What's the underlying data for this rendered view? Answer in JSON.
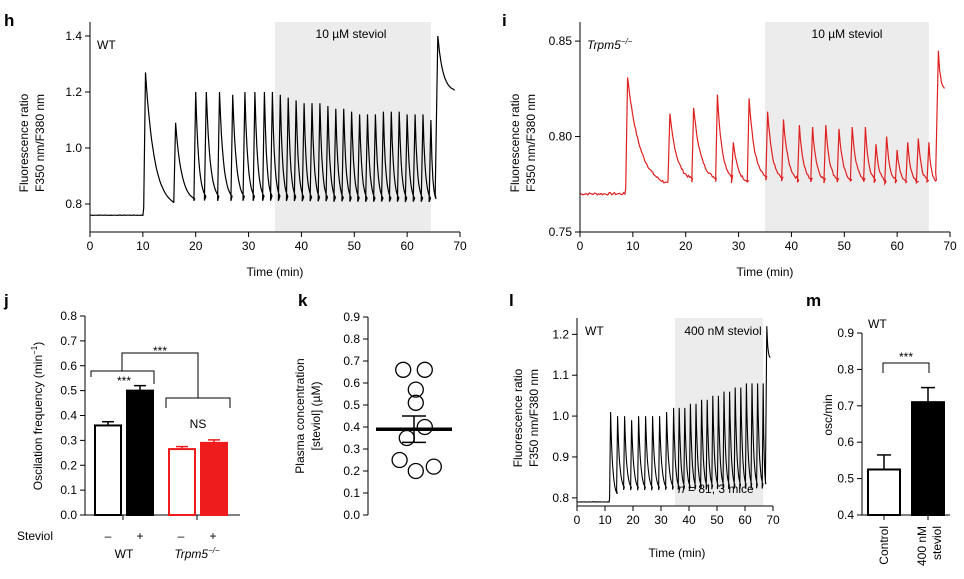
{
  "panels": {
    "h": {
      "letter": "h",
      "genotype": "WT",
      "shade_label": "10 µM steviol",
      "xlabel": "Time (min)",
      "ylabel_1": "Fluorescence ratio",
      "ylabel_2": "F350 nm/F380 nm"
    },
    "i": {
      "letter": "i",
      "genotype": "Trpm5",
      "genotype_sup": "−/−",
      "shade_label": "10 µM steviol",
      "xlabel": "Time (min)",
      "ylabel_1": "Fluorescence ratio",
      "ylabel_2": "F350 nm/F380 nm"
    },
    "j": {
      "letter": "j",
      "ylabel": "Oscilation frequency (min",
      "ylabel_sup": "−1",
      "ylabel_end": ")",
      "sig_top": "***",
      "sig_wt": "***",
      "sig_ko": "NS",
      "steviol_label": "Steviol",
      "minus": "–",
      "plus": "+",
      "group_wt": "WT",
      "group_ko": "Trpm5",
      "group_ko_sup": "−/−"
    },
    "k": {
      "letter": "k",
      "ylabel_1": "Plasma concentration",
      "ylabel_2": "[steviol] (µM)"
    },
    "l": {
      "letter": "l",
      "genotype": "WT",
      "shade_label": "400 nM steviol",
      "xlabel": "Time (min)",
      "ylabel_1": "Fluorescence ratio",
      "ylabel_2": "F350 nm/F380 nm",
      "n_label_n": "n",
      "n_label_rest": " = 81, 3 mice"
    },
    "m": {
      "letter": "m",
      "genotype": "WT",
      "ylabel": "osc/min",
      "sig": "***"
    }
  },
  "chart_data": [
    {
      "id": "h",
      "type": "line",
      "xlabel": "Time (min)",
      "ylabel": "Fluorescence ratio F350 nm/F380 nm",
      "xlim": [
        0,
        70
      ],
      "ylim": [
        0.7,
        1.45
      ],
      "xticks": [
        0,
        10,
        20,
        30,
        40,
        50,
        60,
        70
      ],
      "yticks": [
        0.8,
        1.0,
        1.2,
        1.4
      ],
      "shaded_region": [
        35,
        64.5
      ],
      "baseline": 0.76,
      "color": "#000000",
      "peaks": [
        {
          "t": 10.5,
          "y": 1.27
        },
        {
          "t": 16.2,
          "y": 1.09
        },
        {
          "t": 20,
          "y": 1.2
        },
        {
          "t": 22,
          "y": 1.2
        },
        {
          "t": 24.5,
          "y": 1.2
        },
        {
          "t": 27,
          "y": 1.19
        },
        {
          "t": 29.3,
          "y": 1.2
        },
        {
          "t": 31.2,
          "y": 1.2
        },
        {
          "t": 33,
          "y": 1.2
        },
        {
          "t": 34.5,
          "y": 1.2
        },
        {
          "t": 36,
          "y": 1.19
        },
        {
          "t": 37.5,
          "y": 1.18
        },
        {
          "t": 39,
          "y": 1.17
        },
        {
          "t": 40.5,
          "y": 1.16
        },
        {
          "t": 42,
          "y": 1.16
        },
        {
          "t": 43.5,
          "y": 1.16
        },
        {
          "t": 45,
          "y": 1.15
        },
        {
          "t": 46.5,
          "y": 1.14
        },
        {
          "t": 48,
          "y": 1.14
        },
        {
          "t": 49.5,
          "y": 1.13
        },
        {
          "t": 51,
          "y": 1.12
        },
        {
          "t": 52.5,
          "y": 1.12
        },
        {
          "t": 54,
          "y": 1.12
        },
        {
          "t": 55.5,
          "y": 1.13
        },
        {
          "t": 57,
          "y": 1.13
        },
        {
          "t": 58.5,
          "y": 1.13
        },
        {
          "t": 60,
          "y": 1.12
        },
        {
          "t": 61.5,
          "y": 1.12
        },
        {
          "t": 63,
          "y": 1.12
        },
        {
          "t": 64.5,
          "y": 1.1
        }
      ],
      "end": {
        "t": 65.5,
        "peak": 1.4,
        "final": 1.2
      }
    },
    {
      "id": "i",
      "type": "line",
      "xlabel": "Time (min)",
      "ylabel": "Fluorescence ratio F350 nm/F380 nm",
      "xlim": [
        0,
        70
      ],
      "ylim": [
        0.75,
        0.86
      ],
      "xticks": [
        0,
        10,
        20,
        30,
        40,
        50,
        60,
        70
      ],
      "yticks": [
        0.75,
        0.8,
        0.85
      ],
      "shaded_region": [
        35,
        66
      ],
      "baseline": 0.77,
      "color": "#e02020",
      "peaks": [
        {
          "t": 9,
          "y": 0.831
        },
        {
          "t": 17,
          "y": 0.812
        },
        {
          "t": 21.5,
          "y": 0.815
        },
        {
          "t": 26,
          "y": 0.822
        },
        {
          "t": 29,
          "y": 0.797
        },
        {
          "t": 32,
          "y": 0.82
        },
        {
          "t": 35.5,
          "y": 0.813
        },
        {
          "t": 38.5,
          "y": 0.809
        },
        {
          "t": 41.5,
          "y": 0.806
        },
        {
          "t": 44,
          "y": 0.805
        },
        {
          "t": 46.5,
          "y": 0.806
        },
        {
          "t": 49,
          "y": 0.804
        },
        {
          "t": 51.5,
          "y": 0.805
        },
        {
          "t": 54,
          "y": 0.805
        },
        {
          "t": 56,
          "y": 0.796
        },
        {
          "t": 58,
          "y": 0.8
        },
        {
          "t": 60,
          "y": 0.793
        },
        {
          "t": 62,
          "y": 0.797
        },
        {
          "t": 64,
          "y": 0.799
        },
        {
          "t": 66,
          "y": 0.797
        }
      ],
      "end": {
        "t": 67.5,
        "peak": 0.845,
        "final": 0.825
      }
    },
    {
      "id": "j",
      "type": "bar",
      "ylabel": "Oscilation frequency (min−1)",
      "ylim": [
        0,
        0.8
      ],
      "yticks": [
        0,
        0.1,
        0.2,
        0.3,
        0.4,
        0.5,
        0.6,
        0.7,
        0.8
      ],
      "categories": [
        "WT –",
        "WT +",
        "Trpm5−/− –",
        "Trpm5−/− +"
      ],
      "values": [
        0.36,
        0.5,
        0.265,
        0.29
      ],
      "errors": [
        0.015,
        0.02,
        0.01,
        0.012
      ],
      "colors": [
        "#ffffff",
        "#000000",
        "#ffffff",
        "#ee1c1c"
      ],
      "edge_colors": [
        "#000000",
        "#000000",
        "#ee1c1c",
        "#ee1c1c"
      ]
    },
    {
      "id": "k",
      "type": "scatter",
      "ylabel": "Plasma concentration [steviol] (µM)",
      "ylim": [
        0,
        0.9
      ],
      "yticks": [
        0,
        0.1,
        0.2,
        0.3,
        0.4,
        0.5,
        0.6,
        0.7,
        0.8,
        0.9
      ],
      "points": [
        {
          "x": -0.3,
          "y": 0.66
        },
        {
          "x": 0.3,
          "y": 0.66
        },
        {
          "x": 0.05,
          "y": 0.57
        },
        {
          "x": 0.05,
          "y": 0.51
        },
        {
          "x": -0.2,
          "y": 0.35
        },
        {
          "x": 0.3,
          "y": 0.4
        },
        {
          "x": -0.4,
          "y": 0.25
        },
        {
          "x": 0.55,
          "y": 0.22
        },
        {
          "x": 0.05,
          "y": 0.2
        }
      ],
      "mean": 0.39,
      "sem": [
        0.33,
        0.45
      ]
    },
    {
      "id": "l",
      "type": "line",
      "xlabel": "Time (min)",
      "ylabel": "Fluorescence ratio F350 nm/F380 nm",
      "xlim": [
        0,
        70
      ],
      "ylim": [
        0.78,
        1.24
      ],
      "xticks": [
        0,
        10,
        20,
        30,
        40,
        50,
        60,
        70
      ],
      "yticks": [
        0.8,
        0.9,
        1.0,
        1.1,
        1.2
      ],
      "shaded_region": [
        35,
        66.5
      ],
      "baseline": 0.79,
      "color": "#000000",
      "peaks": [
        {
          "t": 12,
          "y": 1.01
        },
        {
          "t": 14.5,
          "y": 1.0
        },
        {
          "t": 17,
          "y": 1.0
        },
        {
          "t": 19.5,
          "y": 0.99
        },
        {
          "t": 22,
          "y": 1.0
        },
        {
          "t": 24.5,
          "y": 1.0
        },
        {
          "t": 27,
          "y": 1.0
        },
        {
          "t": 29.5,
          "y": 1.0
        },
        {
          "t": 32,
          "y": 1.01
        },
        {
          "t": 34.5,
          "y": 1.02
        },
        {
          "t": 36.5,
          "y": 1.02
        },
        {
          "t": 38.5,
          "y": 1.02
        },
        {
          "t": 40.5,
          "y": 1.03
        },
        {
          "t": 42.5,
          "y": 1.03
        },
        {
          "t": 44.5,
          "y": 1.04
        },
        {
          "t": 46.5,
          "y": 1.04
        },
        {
          "t": 48.5,
          "y": 1.05
        },
        {
          "t": 50.5,
          "y": 1.05
        },
        {
          "t": 52.5,
          "y": 1.06
        },
        {
          "t": 54.5,
          "y": 1.06
        },
        {
          "t": 56.5,
          "y": 1.07
        },
        {
          "t": 58.5,
          "y": 1.07
        },
        {
          "t": 60.5,
          "y": 1.08
        },
        {
          "t": 62.5,
          "y": 1.08
        },
        {
          "t": 64.5,
          "y": 1.08
        },
        {
          "t": 66.5,
          "y": 1.08
        }
      ],
      "end": {
        "t": 67.5,
        "peak": 1.22,
        "final": 1.14
      }
    },
    {
      "id": "m",
      "type": "bar",
      "ylabel": "osc/min",
      "ylim": [
        0.4,
        0.9
      ],
      "yticks": [
        0.4,
        0.5,
        0.6,
        0.7,
        0.8,
        0.9
      ],
      "categories": [
        "Control",
        "400 nM steviol"
      ],
      "values": [
        0.525,
        0.71
      ],
      "errors": [
        0.04,
        0.04
      ],
      "colors": [
        "#ffffff",
        "#000000"
      ]
    }
  ]
}
